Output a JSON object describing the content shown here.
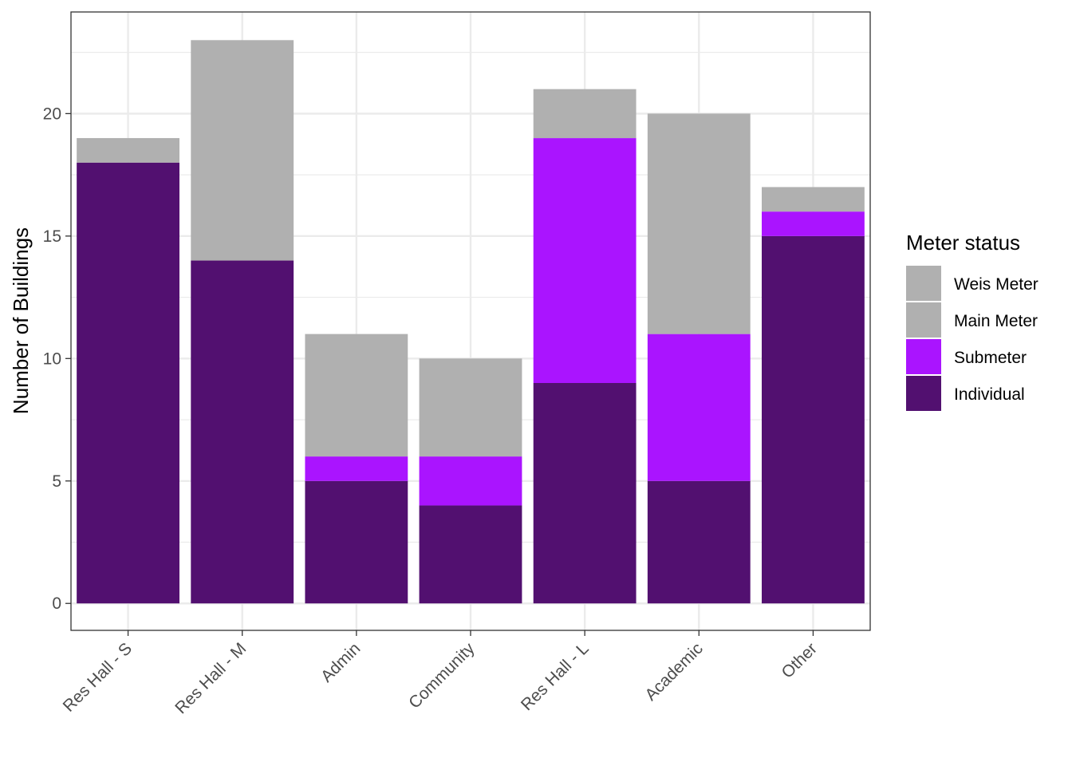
{
  "chart_data": {
    "type": "bar",
    "stacked": true,
    "categories": [
      "Res Hall - S",
      "Res Hall - M",
      "Admin",
      "Community",
      "Res Hall - L",
      "Academic",
      "Other"
    ],
    "series": [
      {
        "name": "Individual",
        "color": "#521070",
        "values": [
          18,
          14,
          5,
          4,
          9,
          5,
          15
        ]
      },
      {
        "name": "Submeter",
        "color": "#aa14ff",
        "values": [
          0,
          0,
          1,
          2,
          10,
          6,
          1
        ]
      },
      {
        "name": "Main Meter",
        "color": "#b0b0b0",
        "values": [
          1,
          9,
          5,
          4,
          2,
          9,
          1
        ]
      },
      {
        "name": "Weis Meter",
        "color": "#b0b0b0",
        "values": [
          0,
          0,
          0,
          0,
          0,
          0,
          0
        ]
      }
    ],
    "title": "",
    "xlabel": "",
    "ylabel": "Number of Buildings",
    "ylim": [
      -1.1,
      24.15
    ],
    "yticks": [
      0,
      5,
      10,
      15,
      20
    ],
    "grid": true,
    "legend": {
      "title": "Meter status",
      "position": "right",
      "entries": [
        "Weis Meter",
        "Main Meter",
        "Submeter",
        "Individual"
      ]
    }
  }
}
